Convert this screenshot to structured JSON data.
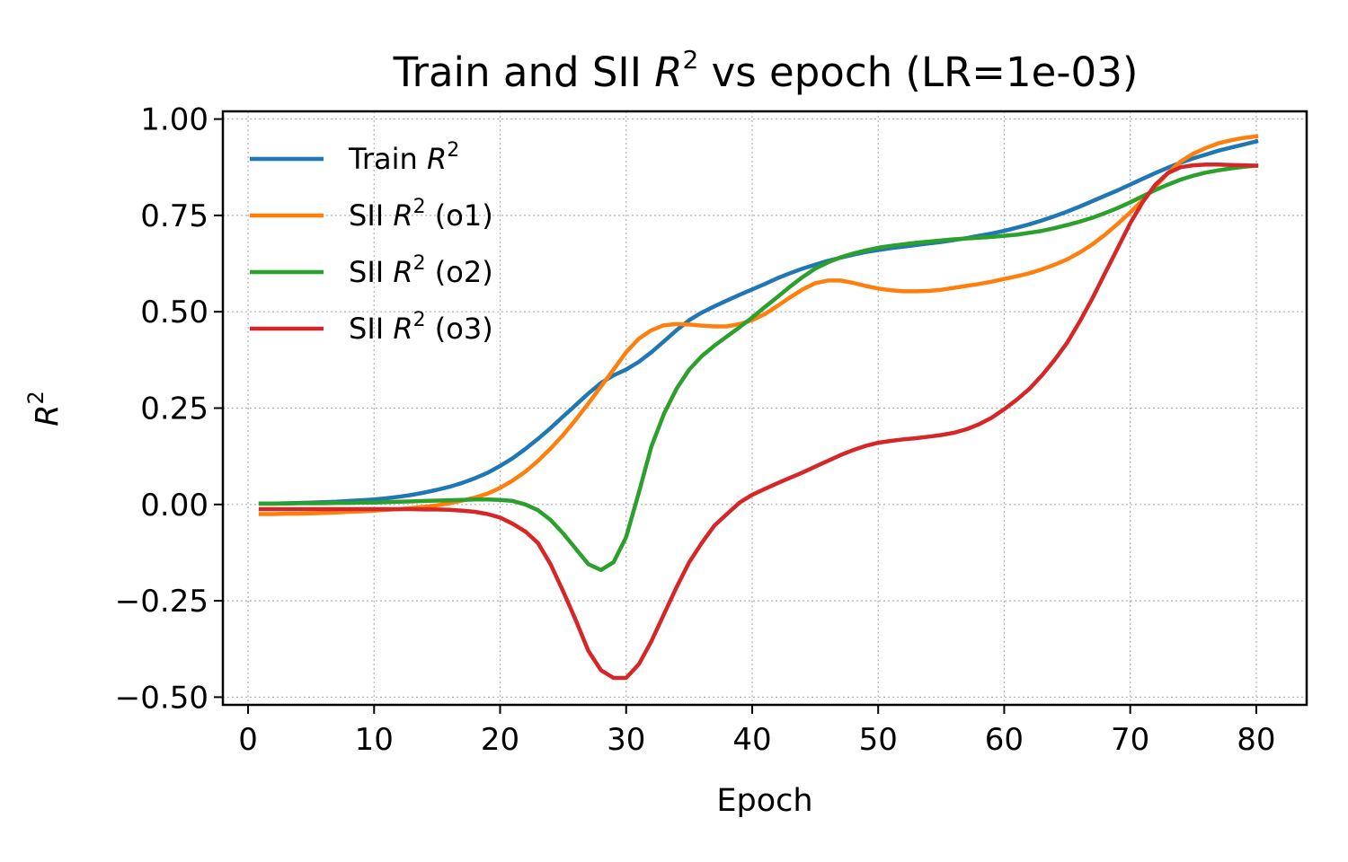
{
  "chart_data": {
    "type": "line",
    "title": "Train and SII R² vs epoch (LR=1e-03)",
    "title_parts": [
      "Train and SII ",
      "R",
      "2",
      " vs epoch (LR=1e-03)"
    ],
    "xlabel": "Epoch",
    "ylabel": "R²",
    "ylabel_parts": [
      "R",
      "2"
    ],
    "xlim": [
      -2,
      84
    ],
    "ylim": [
      -0.52,
      1.02
    ],
    "xticks": [
      0,
      10,
      20,
      30,
      40,
      50,
      60,
      70,
      80
    ],
    "xtick_labels": [
      "0",
      "10",
      "20",
      "30",
      "40",
      "50",
      "60",
      "70",
      "80"
    ],
    "yticks": [
      1.0,
      0.75,
      0.5,
      0.25,
      0.0,
      -0.25,
      -0.5
    ],
    "ytick_labels": [
      "1.00",
      "0.75",
      "0.50",
      "0.25",
      "0.00",
      "−0.25",
      "−0.50"
    ],
    "grid": true,
    "legend_position": "top-left",
    "x": [
      1,
      2,
      3,
      4,
      5,
      6,
      7,
      8,
      9,
      10,
      11,
      12,
      13,
      14,
      15,
      16,
      17,
      18,
      19,
      20,
      21,
      22,
      23,
      24,
      25,
      26,
      27,
      28,
      29,
      30,
      31,
      32,
      33,
      34,
      35,
      36,
      37,
      38,
      39,
      40,
      41,
      42,
      43,
      44,
      45,
      46,
      47,
      48,
      49,
      50,
      51,
      52,
      53,
      54,
      55,
      56,
      57,
      58,
      59,
      60,
      61,
      62,
      63,
      64,
      65,
      66,
      67,
      68,
      69,
      70,
      71,
      72,
      73,
      74,
      75,
      76,
      77,
      78,
      79,
      80
    ],
    "series": [
      {
        "name": "Train R²",
        "legend_parts": [
          "Train ",
          "R",
          "2",
          ""
        ],
        "color": "#1f77b4",
        "values": [
          0.002,
          0.002,
          0.003,
          0.004,
          0.005,
          0.006,
          0.007,
          0.009,
          0.011,
          0.013,
          0.016,
          0.02,
          0.025,
          0.031,
          0.038,
          0.046,
          0.056,
          0.068,
          0.082,
          0.1,
          0.12,
          0.144,
          0.17,
          0.198,
          0.228,
          0.258,
          0.288,
          0.315,
          0.335,
          0.35,
          0.37,
          0.395,
          0.423,
          0.452,
          0.478,
          0.498,
          0.514,
          0.529,
          0.544,
          0.558,
          0.572,
          0.587,
          0.6,
          0.612,
          0.622,
          0.632,
          0.64,
          0.648,
          0.655,
          0.66,
          0.665,
          0.669,
          0.673,
          0.677,
          0.681,
          0.686,
          0.691,
          0.697,
          0.703,
          0.71,
          0.718,
          0.727,
          0.737,
          0.748,
          0.76,
          0.773,
          0.787,
          0.801,
          0.815,
          0.83,
          0.845,
          0.86,
          0.874,
          0.887,
          0.898,
          0.908,
          0.918,
          0.926,
          0.934,
          0.942
        ]
      },
      {
        "name": "SII R² (o1)",
        "legend_parts": [
          "SII ",
          "R",
          "2",
          " (o1)"
        ],
        "color": "#ff7f0e",
        "values": [
          -0.025,
          -0.025,
          -0.024,
          -0.024,
          -0.023,
          -0.022,
          -0.021,
          -0.019,
          -0.018,
          -0.016,
          -0.014,
          -0.012,
          -0.009,
          -0.006,
          -0.002,
          0.003,
          0.01,
          0.018,
          0.028,
          0.043,
          0.062,
          0.085,
          0.113,
          0.145,
          0.18,
          0.22,
          0.262,
          0.306,
          0.35,
          0.395,
          0.43,
          0.452,
          0.465,
          0.468,
          0.467,
          0.464,
          0.462,
          0.462,
          0.468,
          0.478,
          0.494,
          0.515,
          0.537,
          0.558,
          0.574,
          0.581,
          0.581,
          0.575,
          0.567,
          0.56,
          0.556,
          0.553,
          0.553,
          0.554,
          0.557,
          0.562,
          0.567,
          0.572,
          0.578,
          0.585,
          0.592,
          0.6,
          0.61,
          0.622,
          0.636,
          0.654,
          0.675,
          0.7,
          0.728,
          0.758,
          0.79,
          0.825,
          0.86,
          0.89,
          0.91,
          0.925,
          0.937,
          0.945,
          0.951,
          0.955
        ]
      },
      {
        "name": "SII R² (o2)",
        "legend_parts": [
          "SII ",
          "R",
          "2",
          " (o2)"
        ],
        "color": "#2ca02c",
        "values": [
          0.002,
          0.002,
          0.002,
          0.003,
          0.003,
          0.003,
          0.004,
          0.004,
          0.005,
          0.005,
          0.006,
          0.007,
          0.008,
          0.009,
          0.01,
          0.011,
          0.012,
          0.013,
          0.013,
          0.012,
          0.009,
          0.0,
          -0.015,
          -0.04,
          -0.075,
          -0.115,
          -0.155,
          -0.17,
          -0.15,
          -0.085,
          0.03,
          0.15,
          0.235,
          0.3,
          0.35,
          0.385,
          0.412,
          0.436,
          0.46,
          0.485,
          0.512,
          0.538,
          0.565,
          0.59,
          0.612,
          0.628,
          0.641,
          0.651,
          0.659,
          0.666,
          0.671,
          0.675,
          0.679,
          0.682,
          0.685,
          0.688,
          0.69,
          0.692,
          0.694,
          0.697,
          0.7,
          0.705,
          0.71,
          0.717,
          0.725,
          0.734,
          0.744,
          0.756,
          0.769,
          0.784,
          0.8,
          0.816,
          0.83,
          0.843,
          0.853,
          0.861,
          0.867,
          0.872,
          0.876,
          0.879
        ]
      },
      {
        "name": "SII R² (o3)",
        "legend_parts": [
          "SII ",
          "R",
          "2",
          " (o3)"
        ],
        "color": "#d62728",
        "values": [
          -0.012,
          -0.012,
          -0.012,
          -0.012,
          -0.012,
          -0.012,
          -0.012,
          -0.012,
          -0.012,
          -0.012,
          -0.012,
          -0.012,
          -0.012,
          -0.013,
          -0.013,
          -0.014,
          -0.016,
          -0.019,
          -0.025,
          -0.034,
          -0.05,
          -0.07,
          -0.1,
          -0.155,
          -0.225,
          -0.3,
          -0.38,
          -0.43,
          -0.45,
          -0.45,
          -0.415,
          -0.355,
          -0.285,
          -0.215,
          -0.15,
          -0.1,
          -0.055,
          -0.025,
          0.005,
          0.025,
          0.04,
          0.055,
          0.069,
          0.083,
          0.098,
          0.113,
          0.128,
          0.141,
          0.152,
          0.16,
          0.165,
          0.169,
          0.172,
          0.176,
          0.18,
          0.186,
          0.195,
          0.208,
          0.225,
          0.247,
          0.272,
          0.3,
          0.335,
          0.375,
          0.42,
          0.475,
          0.535,
          0.6,
          0.665,
          0.73,
          0.785,
          0.83,
          0.86,
          0.875,
          0.88,
          0.882,
          0.882,
          0.881,
          0.88,
          0.879
        ]
      }
    ]
  }
}
